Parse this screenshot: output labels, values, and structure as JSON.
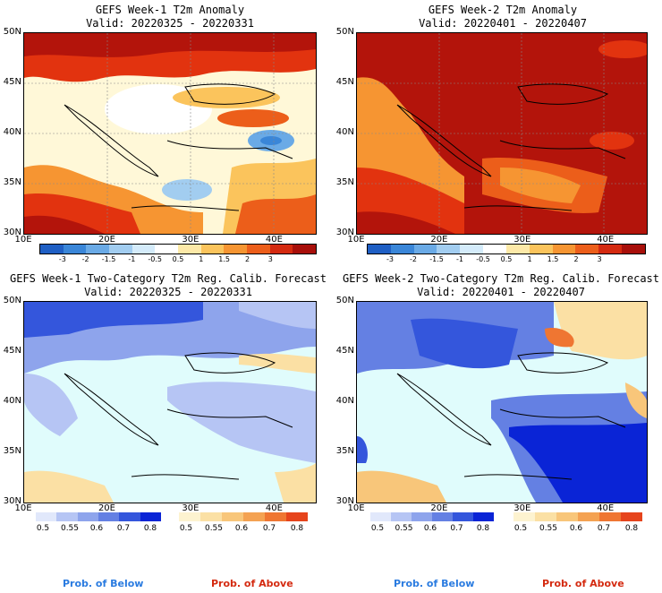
{
  "panels": [
    {
      "title": "GEFS Week-1 T2m Anomaly",
      "valid": "Valid: 20220325 - 20220331"
    },
    {
      "title": "GEFS Week-2 T2m Anomaly",
      "valid": "Valid: 20220401 - 20220407"
    },
    {
      "title": "GEFS Week-1 Two-Category T2m Reg. Calib. Forecast",
      "valid": "Valid: 20220325 - 20220331"
    },
    {
      "title": "GEFS Week-2 Two-Category T2m Reg. Calib. Forecast",
      "valid": "Valid: 20220401 - 20220407"
    }
  ],
  "lat_labels": [
    "50N",
    "45N",
    "40N",
    "35N",
    "30N"
  ],
  "lon_labels": [
    "10E",
    "20E",
    "30E",
    "40E"
  ],
  "anomaly_colorbar": {
    "ticks": [
      "-3",
      "-2",
      "-1.5",
      "-1",
      "-0.5",
      "0.5",
      "1",
      "1.5",
      "2",
      "3"
    ],
    "colors": [
      "#1f5fc4",
      "#3a86d8",
      "#6aaae6",
      "#a2cdf0",
      "#d4ebfa",
      "#ffffff",
      "#fde9a8",
      "#fbc45c",
      "#f69532",
      "#ec5e1a",
      "#d42a10",
      "#a80f0a"
    ]
  },
  "prob_below": {
    "ticks": [
      "0.5",
      "0.55",
      "0.6",
      "0.7",
      "0.8"
    ],
    "colors": [
      "#e1e8fb",
      "#b6c5f4",
      "#8ea4ec",
      "#6480e3",
      "#3456dc",
      "#0a24d6"
    ],
    "label": "Prob. of Below",
    "label_color": "#2a7be0"
  },
  "prob_above": {
    "ticks": [
      "0.5",
      "0.55",
      "0.6",
      "0.7",
      "0.8"
    ],
    "colors": [
      "#fdf3d0",
      "#fbe0a4",
      "#f8c67a",
      "#f4a252",
      "#ef7632",
      "#e6441c"
    ],
    "label": "Prob. of Above",
    "label_color": "#d42a10"
  },
  "colors": {
    "sea_calib": "#e0fcfc",
    "land_calib_base": "#b9c8f4",
    "anom_warm": "#e2330f",
    "anom_hot": "#b3140b"
  }
}
